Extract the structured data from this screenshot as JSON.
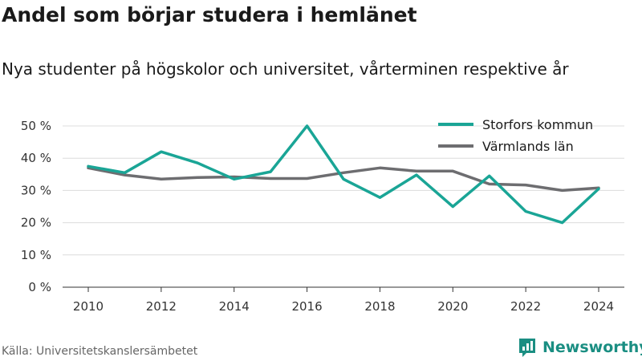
{
  "header": {
    "title": "Andel som börjar studera i hemlänet",
    "subtitle": "Nya studenter på högskolor och universitet, vårterminen respektive år"
  },
  "footer": {
    "source": "Källa: Universitetskanslersämbetet",
    "brand": "Newsworthy"
  },
  "colors": {
    "storfors": "#1aa596",
    "varmland": "#6d6d70",
    "grid": "#dcdcdc",
    "brand": "#1a8e82"
  },
  "icons": {
    "brand_logo": "newsworthy-logo-icon"
  },
  "chart_data": {
    "type": "line",
    "title": "Andel som börjar studera i hemlänet",
    "subtitle": "Nya studenter på högskolor och universitet, vårterminen respektive år",
    "x": [
      2010,
      2011,
      2012,
      2013,
      2014,
      2015,
      2016,
      2017,
      2018,
      2019,
      2020,
      2021,
      2022,
      2023,
      2024
    ],
    "xticks": [
      "2010",
      "2012",
      "2014",
      "2016",
      "2018",
      "2020",
      "2022",
      "2024"
    ],
    "yticks": [
      "0 %",
      "10 %",
      "20 %",
      "30 %",
      "40 %",
      "50 %"
    ],
    "ylim": [
      0,
      50
    ],
    "xlim": [
      2010,
      2024
    ],
    "grid": true,
    "legend_position": "top-right",
    "series": [
      {
        "name": "Storfors kommun",
        "values": [
          37.5,
          35.5,
          42,
          38.5,
          33.5,
          35.8,
          50,
          33.5,
          27.8,
          34.8,
          25,
          34.5,
          23.5,
          20,
          30.5
        ]
      },
      {
        "name": "Värmlands län",
        "values": [
          37,
          34.8,
          33.5,
          34,
          34.2,
          33.7,
          33.7,
          35.5,
          37,
          36,
          36,
          32,
          31.7,
          30,
          30.8
        ]
      }
    ]
  }
}
